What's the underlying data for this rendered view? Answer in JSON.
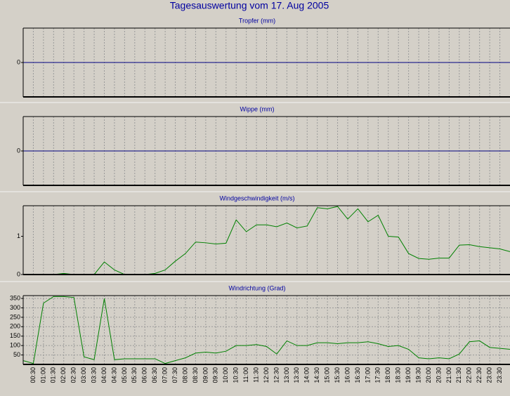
{
  "title": "Tagesauswertung vom 17. Aug 2005",
  "chart_data": [
    {
      "type": "line",
      "title": "Tropfer (mm)",
      "ylim": [
        -1,
        1
      ],
      "yticks": [
        0
      ],
      "xgrid": true,
      "ygrid": false,
      "series": [
        {
          "color": "#000080",
          "values": [
            0,
            0,
            0,
            0,
            0,
            0,
            0,
            0,
            0,
            0,
            0,
            0,
            0,
            0,
            0,
            0,
            0,
            0,
            0,
            0,
            0,
            0,
            0,
            0,
            0,
            0,
            0,
            0,
            0,
            0,
            0,
            0,
            0,
            0,
            0,
            0,
            0,
            0,
            0,
            0,
            0,
            0,
            0,
            0,
            0,
            0,
            0,
            0,
            0
          ]
        }
      ]
    },
    {
      "type": "line",
      "title": "Wippe (mm)",
      "ylim": [
        -1,
        1
      ],
      "yticks": [
        0
      ],
      "xgrid": true,
      "ygrid": false,
      "series": [
        {
          "color": "#000080",
          "values": [
            0,
            0,
            0,
            0,
            0,
            0,
            0,
            0,
            0,
            0,
            0,
            0,
            0,
            0,
            0,
            0,
            0,
            0,
            0,
            0,
            0,
            0,
            0,
            0,
            0,
            0,
            0,
            0,
            0,
            0,
            0,
            0,
            0,
            0,
            0,
            0,
            0,
            0,
            0,
            0,
            0,
            0,
            0,
            0,
            0,
            0,
            0,
            0,
            0
          ]
        }
      ]
    },
    {
      "type": "line",
      "title": "Windgeschwindigkeit (m/s)",
      "ylim": [
        0,
        1.8
      ],
      "yticks": [
        0,
        1
      ],
      "xgrid": true,
      "ygrid": false,
      "series": [
        {
          "color": "#008000",
          "values": [
            0,
            0,
            0,
            0,
            0.03,
            0,
            0,
            0,
            0.33,
            0.12,
            0,
            0,
            0,
            0.03,
            0.12,
            0.35,
            0.55,
            0.85,
            0.83,
            0.8,
            0.82,
            1.43,
            1.12,
            1.3,
            1.3,
            1.25,
            1.35,
            1.22,
            1.27,
            1.75,
            1.72,
            1.78,
            1.45,
            1.72,
            1.38,
            1.55,
            1.0,
            0.98,
            0.55,
            0.42,
            0.4,
            0.43,
            0.43,
            0.77,
            0.78,
            0.73,
            0.7,
            0.67,
            0.6
          ]
        }
      ]
    },
    {
      "type": "line",
      "title": "Windrichtung (Grad)",
      "ylim": [
        0,
        365
      ],
      "yticks": [
        50,
        100,
        150,
        200,
        250,
        300,
        350
      ],
      "xgrid": true,
      "ygrid": true,
      "categories": [
        null,
        "00:30",
        "01:00",
        "01:30",
        "02:00",
        "02:30",
        "03:00",
        "03:30",
        "04:00",
        "04:30",
        "05:00",
        "05:30",
        "06:00",
        "06:30",
        "07:00",
        "07:30",
        "08:00",
        "08:30",
        "09:00",
        "09:30",
        "10:00",
        "10:30",
        "11:00",
        "11:30",
        "12:00",
        "12:30",
        "13:00",
        "13:30",
        "14:00",
        "14:30",
        "15:00",
        "15:30",
        "16:00",
        "16:30",
        "17:00",
        "17:30",
        "18:00",
        "18:30",
        "19:00",
        "19:30",
        "20:00",
        "20:30",
        "21:00",
        "21:30",
        "22:00",
        "22:30",
        "23:00",
        "23:30",
        null
      ],
      "series": [
        {
          "color": "#008000",
          "values": [
            20,
            5,
            325,
            360,
            360,
            355,
            40,
            25,
            350,
            25,
            30,
            30,
            30,
            30,
            5,
            20,
            35,
            60,
            65,
            60,
            70,
            100,
            100,
            105,
            95,
            55,
            125,
            100,
            100,
            115,
            115,
            110,
            115,
            115,
            120,
            110,
            95,
            100,
            80,
            35,
            30,
            35,
            30,
            55,
            120,
            125,
            90,
            85,
            80
          ]
        }
      ]
    }
  ]
}
